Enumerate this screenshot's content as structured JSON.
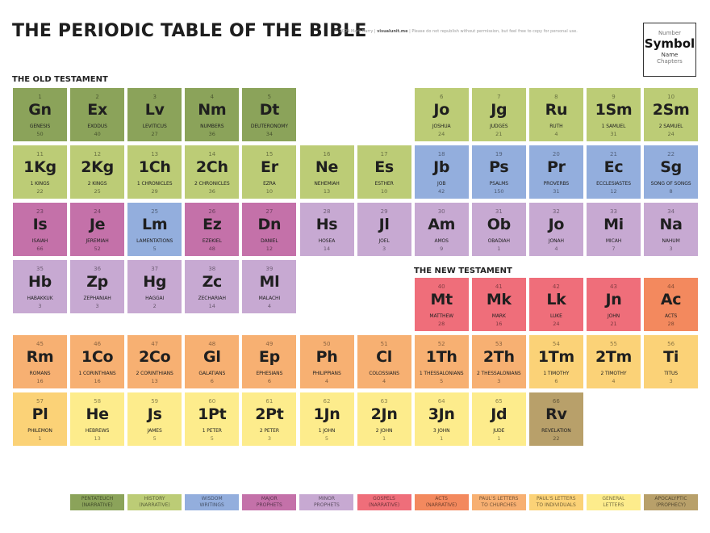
{
  "header": {
    "title": "THE PERIODIC TABLE OF THE BIBLE",
    "credit_prefix": "© 2009 Mark Barry |",
    "credit_site": "visualunit.me",
    "credit_suffix": "| Please do not republish without permission, but feel free to copy for personal use."
  },
  "key": {
    "number": "Number",
    "symbol": "Symbol",
    "name": "Name",
    "chapters": "Chapters"
  },
  "sections": {
    "old": "THE OLD TESTAMENT",
    "new": "THE NEW TESTAMENT"
  },
  "colors": {
    "pentateuch": "#8ba35a",
    "history": "#bccc76",
    "wisdom": "#93aedd",
    "major": "#c471a9",
    "minor": "#c7a9d2",
    "gospels": "#ef6e7a",
    "acts": "#f3895e",
    "pchurch": "#f7b072",
    "pind": "#fbd277",
    "general": "#fdec8c",
    "apoc": "#b8a06a"
  },
  "books": [
    {
      "n": "1",
      "s": "Gn",
      "name": "GENESIS",
      "ch": "50",
      "cat": "pentateuch",
      "col": 0,
      "row": 0
    },
    {
      "n": "2",
      "s": "Ex",
      "name": "EXODUS",
      "ch": "40",
      "cat": "pentateuch",
      "col": 1,
      "row": 0
    },
    {
      "n": "3",
      "s": "Lv",
      "name": "LEVITICUS",
      "ch": "27",
      "cat": "pentateuch",
      "col": 2,
      "row": 0
    },
    {
      "n": "4",
      "s": "Nm",
      "name": "NUMBERS",
      "ch": "36",
      "cat": "pentateuch",
      "col": 3,
      "row": 0
    },
    {
      "n": "5",
      "s": "Dt",
      "name": "DEUTERONOMY",
      "ch": "34",
      "cat": "pentateuch",
      "col": 4,
      "row": 0
    },
    {
      "n": "6",
      "s": "Jo",
      "name": "JOSHUA",
      "ch": "24",
      "cat": "history",
      "col": 7,
      "row": 0
    },
    {
      "n": "7",
      "s": "Jg",
      "name": "JUDGES",
      "ch": "21",
      "cat": "history",
      "col": 8,
      "row": 0
    },
    {
      "n": "8",
      "s": "Ru",
      "name": "RUTH",
      "ch": "4",
      "cat": "history",
      "col": 9,
      "row": 0
    },
    {
      "n": "9",
      "s": "1Sm",
      "name": "1 SAMUEL",
      "ch": "31",
      "cat": "history",
      "col": 10,
      "row": 0
    },
    {
      "n": "10",
      "s": "2Sm",
      "name": "2 SAMUEL",
      "ch": "24",
      "cat": "history",
      "col": 11,
      "row": 0
    },
    {
      "n": "11",
      "s": "1Kg",
      "name": "1 KINGS",
      "ch": "22",
      "cat": "history",
      "col": 0,
      "row": 1
    },
    {
      "n": "12",
      "s": "2Kg",
      "name": "2 KINGS",
      "ch": "25",
      "cat": "history",
      "col": 1,
      "row": 1
    },
    {
      "n": "13",
      "s": "1Ch",
      "name": "1 CHRONICLES",
      "ch": "29",
      "cat": "history",
      "col": 2,
      "row": 1
    },
    {
      "n": "14",
      "s": "2Ch",
      "name": "2 CHRONICLES",
      "ch": "36",
      "cat": "history",
      "col": 3,
      "row": 1
    },
    {
      "n": "15",
      "s": "Er",
      "name": "EZRA",
      "ch": "10",
      "cat": "history",
      "col": 4,
      "row": 1
    },
    {
      "n": "16",
      "s": "Ne",
      "name": "NEHEMIAH",
      "ch": "13",
      "cat": "history",
      "col": 5,
      "row": 1
    },
    {
      "n": "17",
      "s": "Es",
      "name": "ESTHER",
      "ch": "10",
      "cat": "history",
      "col": 6,
      "row": 1
    },
    {
      "n": "18",
      "s": "Jb",
      "name": "JOB",
      "ch": "42",
      "cat": "wisdom",
      "col": 7,
      "row": 1
    },
    {
      "n": "19",
      "s": "Ps",
      "name": "PSALMS",
      "ch": "150",
      "cat": "wisdom",
      "col": 8,
      "row": 1
    },
    {
      "n": "20",
      "s": "Pr",
      "name": "PROVERBS",
      "ch": "31",
      "cat": "wisdom",
      "col": 9,
      "row": 1
    },
    {
      "n": "21",
      "s": "Ec",
      "name": "ECCLESIASTES",
      "ch": "12",
      "cat": "wisdom",
      "col": 10,
      "row": 1
    },
    {
      "n": "22",
      "s": "Sg",
      "name": "SONG OF SONGS",
      "ch": "8",
      "cat": "wisdom",
      "col": 11,
      "row": 1
    },
    {
      "n": "23",
      "s": "Is",
      "name": "ISAIAH",
      "ch": "66",
      "cat": "major",
      "col": 0,
      "row": 2
    },
    {
      "n": "24",
      "s": "Je",
      "name": "JEREMIAH",
      "ch": "52",
      "cat": "major",
      "col": 1,
      "row": 2
    },
    {
      "n": "25",
      "s": "Lm",
      "name": "LAMENTATIONS",
      "ch": "5",
      "cat": "wisdom",
      "col": 2,
      "row": 2
    },
    {
      "n": "26",
      "s": "Ez",
      "name": "EZEKIEL",
      "ch": "48",
      "cat": "major",
      "col": 3,
      "row": 2
    },
    {
      "n": "27",
      "s": "Dn",
      "name": "DANIEL",
      "ch": "12",
      "cat": "major",
      "col": 4,
      "row": 2
    },
    {
      "n": "28",
      "s": "Hs",
      "name": "HOSEA",
      "ch": "14",
      "cat": "minor",
      "col": 5,
      "row": 2
    },
    {
      "n": "29",
      "s": "Jl",
      "name": "JOEL",
      "ch": "3",
      "cat": "minor",
      "col": 6,
      "row": 2
    },
    {
      "n": "30",
      "s": "Am",
      "name": "AMOS",
      "ch": "9",
      "cat": "minor",
      "col": 7,
      "row": 2
    },
    {
      "n": "31",
      "s": "Ob",
      "name": "OBADIAH",
      "ch": "1",
      "cat": "minor",
      "col": 8,
      "row": 2
    },
    {
      "n": "32",
      "s": "Jo",
      "name": "JONAH",
      "ch": "4",
      "cat": "minor",
      "col": 9,
      "row": 2
    },
    {
      "n": "33",
      "s": "Mi",
      "name": "MICAH",
      "ch": "7",
      "cat": "minor",
      "col": 10,
      "row": 2
    },
    {
      "n": "34",
      "s": "Na",
      "name": "NAHUM",
      "ch": "3",
      "cat": "minor",
      "col": 11,
      "row": 2
    },
    {
      "n": "35",
      "s": "Hb",
      "name": "HABAKKUK",
      "ch": "3",
      "cat": "minor",
      "col": 0,
      "row": 3
    },
    {
      "n": "36",
      "s": "Zp",
      "name": "ZEPHANIAH",
      "ch": "3",
      "cat": "minor",
      "col": 1,
      "row": 3
    },
    {
      "n": "37",
      "s": "Hg",
      "name": "HAGGAI",
      "ch": "2",
      "cat": "minor",
      "col": 2,
      "row": 3
    },
    {
      "n": "38",
      "s": "Zc",
      "name": "ZECHARIAH",
      "ch": "14",
      "cat": "minor",
      "col": 3,
      "row": 3
    },
    {
      "n": "39",
      "s": "Ml",
      "name": "MALACHI",
      "ch": "4",
      "cat": "minor",
      "col": 4,
      "row": 3
    },
    {
      "n": "40",
      "s": "Mt",
      "name": "MATTHEW",
      "ch": "28",
      "cat": "gospels",
      "col": 7,
      "row": 3.35
    },
    {
      "n": "41",
      "s": "Mk",
      "name": "MARK",
      "ch": "16",
      "cat": "gospels",
      "col": 8,
      "row": 3.35
    },
    {
      "n": "42",
      "s": "Lk",
      "name": "LUKE",
      "ch": "24",
      "cat": "gospels",
      "col": 9,
      "row": 3.35
    },
    {
      "n": "43",
      "s": "Jn",
      "name": "JOHN",
      "ch": "21",
      "cat": "gospels",
      "col": 10,
      "row": 3.35
    },
    {
      "n": "44",
      "s": "Ac",
      "name": "ACTS",
      "ch": "28",
      "cat": "acts",
      "col": 11,
      "row": 3.35
    },
    {
      "n": "45",
      "s": "Rm",
      "name": "ROMANS",
      "ch": "16",
      "cat": "pchurch",
      "col": 0,
      "row": 4.35
    },
    {
      "n": "46",
      "s": "1Co",
      "name": "1 CORINTHIANS",
      "ch": "16",
      "cat": "pchurch",
      "col": 1,
      "row": 4.35
    },
    {
      "n": "47",
      "s": "2Co",
      "name": "2 CORINTHIANS",
      "ch": "13",
      "cat": "pchurch",
      "col": 2,
      "row": 4.35
    },
    {
      "n": "48",
      "s": "Gl",
      "name": "GALATIANS",
      "ch": "6",
      "cat": "pchurch",
      "col": 3,
      "row": 4.35
    },
    {
      "n": "49",
      "s": "Ep",
      "name": "EPHESIANS",
      "ch": "6",
      "cat": "pchurch",
      "col": 4,
      "row": 4.35
    },
    {
      "n": "50",
      "s": "Ph",
      "name": "PHILIPPIANS",
      "ch": "4",
      "cat": "pchurch",
      "col": 5,
      "row": 4.35
    },
    {
      "n": "51",
      "s": "Cl",
      "name": "COLOSSIANS",
      "ch": "4",
      "cat": "pchurch",
      "col": 6,
      "row": 4.35
    },
    {
      "n": "52",
      "s": "1Th",
      "name": "1 THESSALONIANS",
      "ch": "5",
      "cat": "pchurch",
      "col": 7,
      "row": 4.35
    },
    {
      "n": "53",
      "s": "2Th",
      "name": "2 THESSALONIANS",
      "ch": "3",
      "cat": "pchurch",
      "col": 8,
      "row": 4.35
    },
    {
      "n": "54",
      "s": "1Tm",
      "name": "1 TIMOTHY",
      "ch": "6",
      "cat": "pind",
      "col": 9,
      "row": 4.35
    },
    {
      "n": "55",
      "s": "2Tm",
      "name": "2 TIMOTHY",
      "ch": "4",
      "cat": "pind",
      "col": 10,
      "row": 4.35
    },
    {
      "n": "56",
      "s": "Ti",
      "name": "TITUS",
      "ch": "3",
      "cat": "pind",
      "col": 11,
      "row": 4.35
    },
    {
      "n": "57",
      "s": "Pl",
      "name": "PHILEMON",
      "ch": "1",
      "cat": "pind",
      "col": 0,
      "row": 5.35
    },
    {
      "n": "58",
      "s": "He",
      "name": "HEBREWS",
      "ch": "13",
      "cat": "general",
      "col": 1,
      "row": 5.35
    },
    {
      "n": "59",
      "s": "Js",
      "name": "JAMES",
      "ch": "5",
      "cat": "general",
      "col": 2,
      "row": 5.35
    },
    {
      "n": "60",
      "s": "1Pt",
      "name": "1 PETER",
      "ch": "5",
      "cat": "general",
      "col": 3,
      "row": 5.35
    },
    {
      "n": "61",
      "s": "2Pt",
      "name": "2 PETER",
      "ch": "3",
      "cat": "general",
      "col": 4,
      "row": 5.35
    },
    {
      "n": "62",
      "s": "1Jn",
      "name": "1 JOHN",
      "ch": "5",
      "cat": "general",
      "col": 5,
      "row": 5.35
    },
    {
      "n": "63",
      "s": "2Jn",
      "name": "2 JOHN",
      "ch": "1",
      "cat": "general",
      "col": 6,
      "row": 5.35
    },
    {
      "n": "64",
      "s": "3Jn",
      "name": "3 JOHN",
      "ch": "1",
      "cat": "general",
      "col": 7,
      "row": 5.35
    },
    {
      "n": "65",
      "s": "Jd",
      "name": "JUDE",
      "ch": "1",
      "cat": "general",
      "col": 8,
      "row": 5.35
    },
    {
      "n": "66",
      "s": "Rv",
      "name": "REVELATION",
      "ch": "22",
      "cat": "apoc",
      "col": 9,
      "row": 5.35
    }
  ],
  "legend": [
    {
      "label": "PENTATEUCH\n(NARRATIVE)",
      "cat": "pentateuch"
    },
    {
      "label": "HISTORY\n(NARRATIVE)",
      "cat": "history"
    },
    {
      "label": "WISDOM\nWRITINGS",
      "cat": "wisdom"
    },
    {
      "label": "MAJOR\nPROPHETS",
      "cat": "major"
    },
    {
      "label": "MINOR\nPROPHETS",
      "cat": "minor"
    },
    {
      "label": "GOSPELS\n(NARRATIVE)",
      "cat": "gospels"
    },
    {
      "label": "ACTS\n(NARRATIVE)",
      "cat": "acts"
    },
    {
      "label": "PAUL'S LETTERS\nTO CHURCHES",
      "cat": "pchurch"
    },
    {
      "label": "PAUL'S LETTERS\nTO INDIVIDUALS",
      "cat": "pind"
    },
    {
      "label": "GENERAL\nLETTERS",
      "cat": "general"
    },
    {
      "label": "APOCALYPTIC\n(PROPHECY)",
      "cat": "apoc"
    }
  ]
}
